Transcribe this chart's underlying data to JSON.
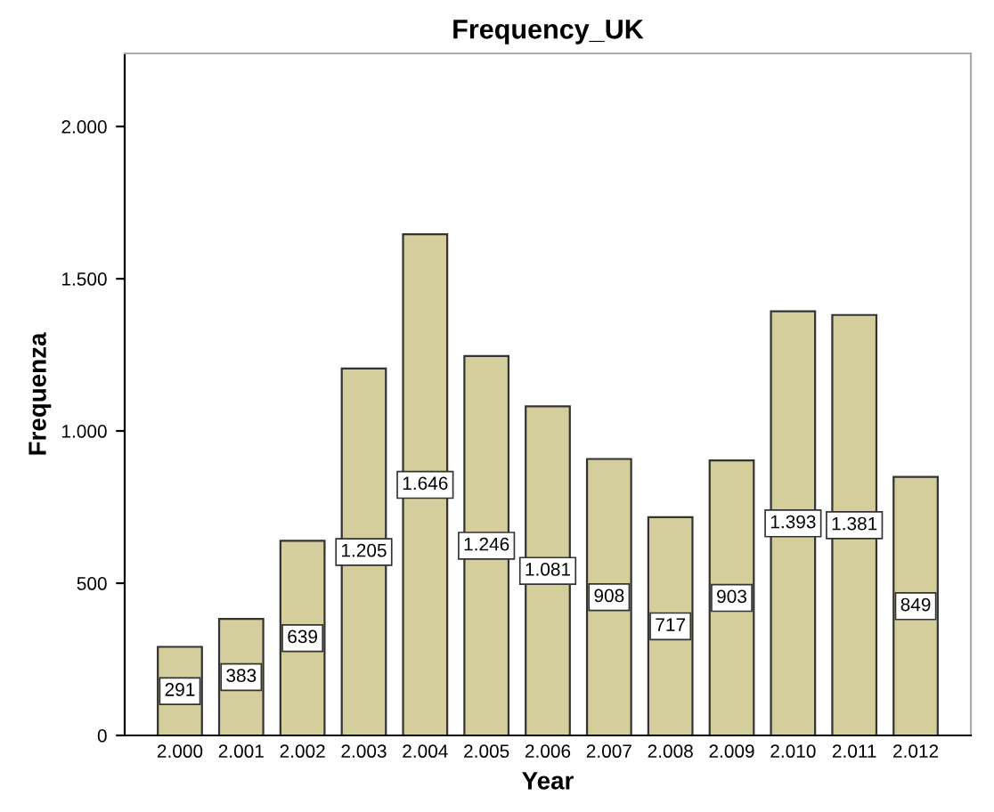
{
  "chart_data": {
    "type": "bar",
    "title": "Frequency_UK",
    "xlabel": "Year",
    "ylabel": "Frequenza",
    "categories": [
      "2.000",
      "2.001",
      "2.002",
      "2.003",
      "2.004",
      "2.005",
      "2.006",
      "2.007",
      "2.008",
      "2.009",
      "2.010",
      "2.011",
      "2.012"
    ],
    "values": [
      291,
      383,
      639,
      1205,
      1646,
      1246,
      1081,
      908,
      717,
      903,
      1393,
      1381,
      849
    ],
    "value_labels": [
      "291",
      "383",
      "639",
      "1.205",
      "1.646",
      "1.246",
      "1.081",
      "908",
      "717",
      "903",
      "1.393",
      "1.381",
      "849"
    ],
    "color": "#d3ce9b",
    "ylim": [
      0,
      2240
    ],
    "yticks": [
      0,
      500,
      {
        "value": 1000,
        "label": "1.000"
      },
      {
        "value": 1500,
        "label": "1.500"
      },
      {
        "value": 2000,
        "label": "2.000"
      }
    ],
    "grid": false
  }
}
